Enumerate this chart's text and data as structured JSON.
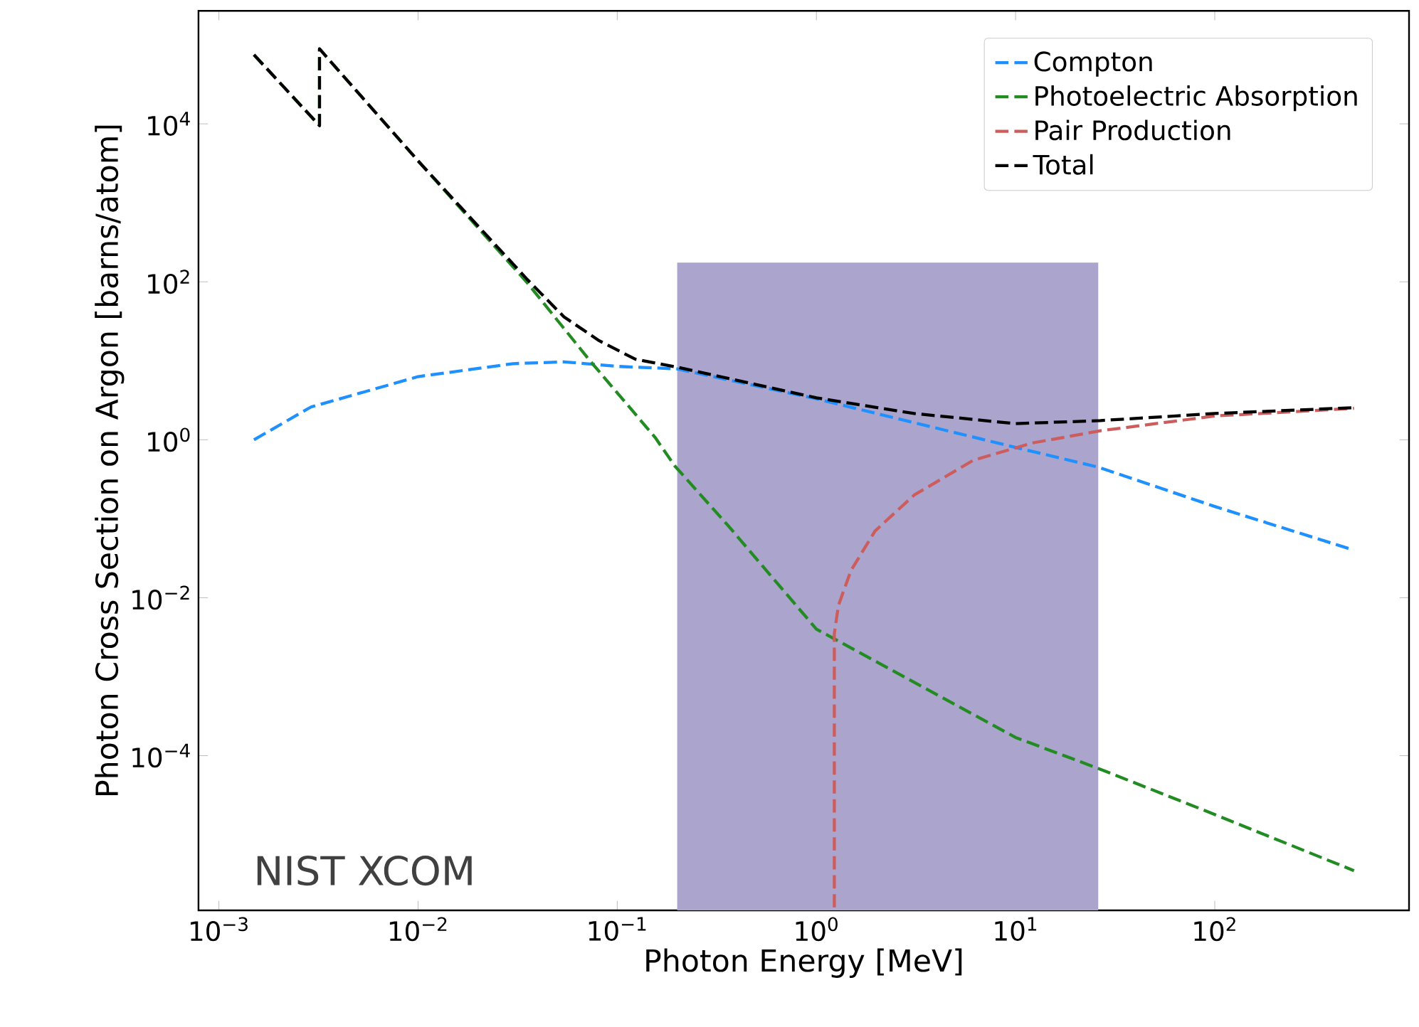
{
  "chart_data": {
    "type": "line",
    "xlabel": "Photon Energy [MeV]",
    "ylabel": "Photon Cross Section on Argon [barns/atom]",
    "log": "xy",
    "line_style": "dashed",
    "legend": "top right",
    "grid": false,
    "xlim": [
      0.00079,
      945
    ],
    "ylim": [
      1.1e-06,
      270000.0
    ],
    "xticks": [
      {
        "value": 0.001,
        "label": "10$^{−3}$"
      },
      {
        "value": 0.01,
        "label": "10$^{−2}$"
      },
      {
        "value": 0.1,
        "label": "10$^{−1}$"
      },
      {
        "value": 1,
        "label": "10$^{0}$"
      },
      {
        "value": 10,
        "label": "10$^{1}$"
      },
      {
        "value": 100,
        "label": "10$^{2}$"
      }
    ],
    "yticks": [
      {
        "value": 0.0001,
        "label": "10$^{−4}$"
      },
      {
        "value": 0.01,
        "label": "10$^{−2}$"
      },
      {
        "value": 1,
        "label": "10$^{0}$"
      },
      {
        "value": 100,
        "label": "10$^{2}$"
      },
      {
        "value": 10000,
        "label": "10$^{4}$"
      }
    ],
    "series": [
      {
        "name": "Compton",
        "color": "#1e90ff",
        "x": [
          0.0015,
          0.0029,
          0.01,
          0.03,
          0.054,
          0.1,
          0.2,
          1,
          10,
          26,
          100,
          500
        ],
        "values": [
          1.0,
          2.6,
          6.3,
          9.2,
          9.7,
          8.5,
          7.9,
          3.3,
          0.8,
          0.45,
          0.143,
          0.04
        ]
      },
      {
        "name": "Photoelectric Absorption",
        "color": "#228b22",
        "x": [
          0.0015,
          0.0032,
          0.0032,
          0.01,
          0.035,
          0.073,
          0.155,
          0.194,
          0.36,
          1,
          10,
          26,
          100,
          500
        ],
        "values": [
          75000,
          9500,
          89000,
          3400,
          100,
          10,
          1.07,
          0.47,
          0.082,
          0.004,
          0.00017,
          6.9e-05,
          1.8e-05,
          3.5e-06
        ]
      },
      {
        "name": "Pair Production",
        "color": "#cd5c5c",
        "x": [
          1.23,
          1.23,
          1.29,
          1.49,
          1.97,
          3.1,
          6.13,
          12.1,
          26.7,
          100,
          500
        ],
        "values": [
          1.2e-06,
          0.0035,
          0.008,
          0.022,
          0.07,
          0.2,
          0.55,
          0.91,
          1.3,
          2.0,
          2.5
        ]
      },
      {
        "name": "Total",
        "color": "#000000",
        "x": [
          0.0015,
          0.0032,
          0.0032,
          0.01,
          0.035,
          0.054,
          0.081,
          0.123,
          0.2,
          1,
          3.1,
          10,
          26.7,
          100,
          500
        ],
        "values": [
          75000,
          9500,
          89000,
          3400,
          110,
          36,
          18,
          10.5,
          8.3,
          3.4,
          2.15,
          1.6,
          1.75,
          2.15,
          2.55
        ]
      }
    ],
    "bands": [
      {
        "axis": "x",
        "from": 0.2,
        "to": 26,
        "color": "#aba4cc"
      }
    ],
    "annotations": [
      "NIST XCOM"
    ]
  }
}
